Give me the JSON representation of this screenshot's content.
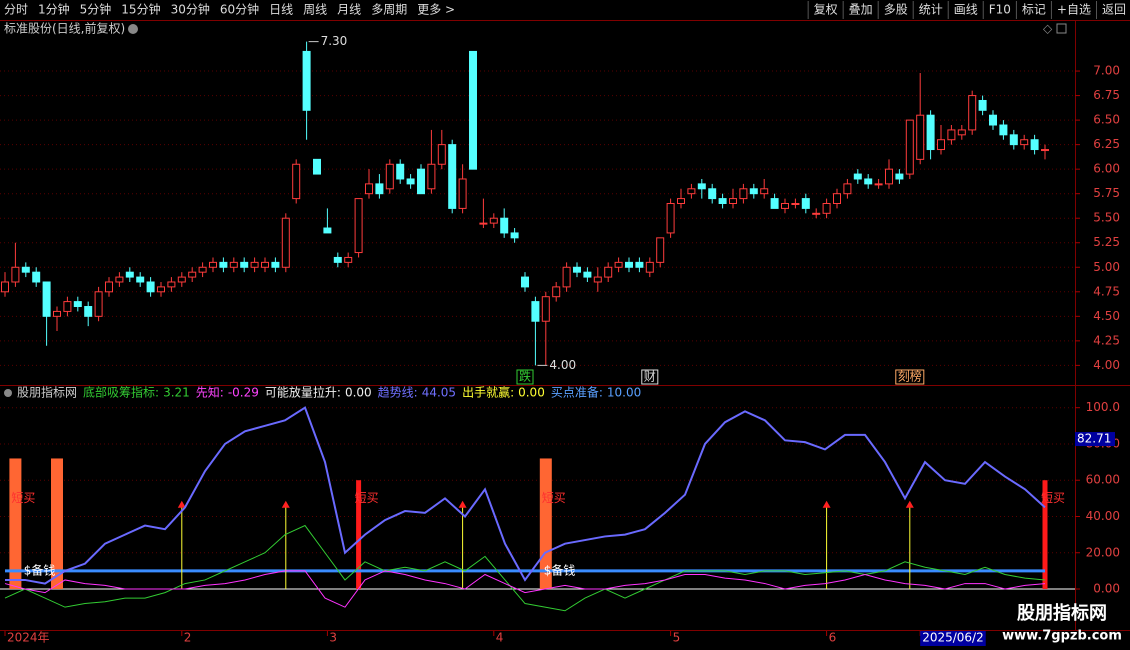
{
  "toolbar": {
    "left": [
      "分时",
      "1分钟",
      "5分钟",
      "15分钟",
      "30分钟",
      "60分钟",
      "日线",
      "周线",
      "月线",
      "多周期",
      "更多 >"
    ],
    "right": [
      "复权",
      "叠加",
      "多股",
      "统计",
      "画线",
      "F10",
      "标记",
      "+自选",
      "返回"
    ]
  },
  "chart_data": [
    {
      "type": "candlestick",
      "title": "标准股份(日线,前复权)",
      "candles": [
        [
          4.75,
          4.95,
          4.7,
          4.85
        ],
        [
          4.85,
          5.25,
          4.8,
          5.0
        ],
        [
          5.0,
          5.05,
          4.9,
          4.95
        ],
        [
          4.95,
          5.0,
          4.8,
          4.85
        ],
        [
          4.85,
          4.85,
          4.2,
          4.5
        ],
        [
          4.5,
          4.6,
          4.35,
          4.55
        ],
        [
          4.55,
          4.7,
          4.5,
          4.65
        ],
        [
          4.65,
          4.7,
          4.55,
          4.6
        ],
        [
          4.6,
          4.65,
          4.4,
          4.5
        ],
        [
          4.5,
          4.8,
          4.45,
          4.75
        ],
        [
          4.75,
          4.9,
          4.7,
          4.85
        ],
        [
          4.85,
          4.95,
          4.8,
          4.9
        ],
        [
          4.95,
          5.0,
          4.85,
          4.9
        ],
        [
          4.9,
          4.95,
          4.8,
          4.85
        ],
        [
          4.85,
          4.9,
          4.7,
          4.75
        ],
        [
          4.75,
          4.85,
          4.7,
          4.8
        ],
        [
          4.8,
          4.9,
          4.75,
          4.85
        ],
        [
          4.85,
          4.95,
          4.8,
          4.9
        ],
        [
          4.9,
          5.0,
          4.85,
          4.95
        ],
        [
          4.95,
          5.05,
          4.9,
          5.0
        ],
        [
          5.0,
          5.1,
          4.95,
          5.05
        ],
        [
          5.05,
          5.1,
          4.95,
          5.0
        ],
        [
          5.0,
          5.1,
          4.95,
          5.05
        ],
        [
          5.05,
          5.1,
          4.95,
          5.0
        ],
        [
          5.0,
          5.1,
          4.95,
          5.05
        ],
        [
          5.0,
          5.1,
          4.95,
          5.05
        ],
        [
          5.05,
          5.1,
          4.95,
          5.0
        ],
        [
          5.0,
          5.55,
          4.95,
          5.5
        ],
        [
          5.7,
          6.1,
          5.65,
          6.05
        ],
        [
          7.2,
          7.3,
          6.3,
          6.6
        ],
        [
          6.1,
          6.1,
          5.95,
          5.95
        ],
        [
          5.4,
          5.6,
          5.35,
          5.35
        ],
        [
          5.1,
          5.15,
          5.0,
          5.05
        ],
        [
          5.05,
          5.15,
          5.0,
          5.1
        ],
        [
          5.15,
          5.7,
          5.1,
          5.7
        ],
        [
          5.75,
          6.0,
          5.7,
          5.85
        ],
        [
          5.85,
          5.95,
          5.7,
          5.75
        ],
        [
          5.8,
          6.1,
          5.75,
          6.05
        ],
        [
          6.05,
          6.1,
          5.85,
          5.9
        ],
        [
          5.9,
          5.95,
          5.8,
          5.85
        ],
        [
          6.0,
          6.05,
          5.75,
          5.75
        ],
        [
          5.8,
          6.4,
          5.75,
          6.05
        ],
        [
          6.05,
          6.4,
          6.0,
          6.25
        ],
        [
          6.25,
          6.3,
          5.55,
          5.6
        ],
        [
          5.6,
          6.05,
          5.55,
          5.9
        ],
        [
          7.2,
          7.2,
          6.0,
          6.0
        ],
        [
          5.45,
          5.7,
          5.4,
          5.45
        ],
        [
          5.45,
          5.55,
          5.4,
          5.5
        ],
        [
          5.5,
          5.6,
          5.3,
          5.35
        ],
        [
          5.35,
          5.4,
          5.25,
          5.3
        ],
        [
          4.9,
          4.95,
          4.75,
          4.8
        ],
        [
          4.65,
          4.7,
          4.0,
          4.45
        ],
        [
          4.45,
          4.75,
          4.0,
          4.7
        ],
        [
          4.7,
          4.85,
          4.65,
          4.8
        ],
        [
          4.8,
          5.05,
          4.75,
          5.0
        ],
        [
          5.0,
          5.05,
          4.9,
          4.95
        ],
        [
          4.95,
          5.0,
          4.85,
          4.9
        ],
        [
          4.85,
          5.0,
          4.75,
          4.9
        ],
        [
          4.9,
          5.05,
          4.85,
          5.0
        ],
        [
          5.0,
          5.1,
          4.95,
          5.05
        ],
        [
          5.05,
          5.1,
          4.95,
          5.0
        ],
        [
          5.05,
          5.1,
          4.95,
          5.0
        ],
        [
          4.95,
          5.1,
          4.9,
          5.05
        ],
        [
          5.05,
          5.3,
          5.0,
          5.3
        ],
        [
          5.35,
          5.7,
          5.3,
          5.65
        ],
        [
          5.65,
          5.8,
          5.6,
          5.7
        ],
        [
          5.75,
          5.85,
          5.7,
          5.8
        ],
        [
          5.85,
          5.9,
          5.7,
          5.8
        ],
        [
          5.8,
          5.85,
          5.65,
          5.7
        ],
        [
          5.7,
          5.75,
          5.6,
          5.65
        ],
        [
          5.65,
          5.8,
          5.6,
          5.7
        ],
        [
          5.7,
          5.85,
          5.65,
          5.8
        ],
        [
          5.8,
          5.85,
          5.7,
          5.75
        ],
        [
          5.75,
          5.9,
          5.7,
          5.8
        ],
        [
          5.7,
          5.75,
          5.6,
          5.6
        ],
        [
          5.6,
          5.7,
          5.55,
          5.65
        ],
        [
          5.65,
          5.7,
          5.6,
          5.65
        ],
        [
          5.7,
          5.75,
          5.55,
          5.6
        ],
        [
          5.55,
          5.6,
          5.5,
          5.55
        ],
        [
          5.55,
          5.7,
          5.5,
          5.65
        ],
        [
          5.65,
          5.8,
          5.6,
          5.75
        ],
        [
          5.75,
          5.9,
          5.7,
          5.85
        ],
        [
          5.95,
          6.0,
          5.85,
          5.9
        ],
        [
          5.9,
          5.95,
          5.8,
          5.85
        ],
        [
          5.85,
          5.9,
          5.8,
          5.85
        ],
        [
          5.85,
          6.1,
          5.8,
          6.0
        ],
        [
          5.95,
          6.0,
          5.85,
          5.9
        ],
        [
          5.95,
          6.5,
          5.9,
          6.5
        ],
        [
          6.1,
          6.98,
          6.05,
          6.55
        ],
        [
          6.55,
          6.6,
          6.1,
          6.2
        ],
        [
          6.2,
          6.45,
          6.15,
          6.3
        ],
        [
          6.3,
          6.45,
          6.25,
          6.4
        ],
        [
          6.35,
          6.45,
          6.3,
          6.4
        ],
        [
          6.4,
          6.8,
          6.35,
          6.75
        ],
        [
          6.7,
          6.75,
          6.55,
          6.6
        ],
        [
          6.55,
          6.6,
          6.4,
          6.45
        ],
        [
          6.45,
          6.5,
          6.3,
          6.35
        ],
        [
          6.35,
          6.4,
          6.2,
          6.25
        ],
        [
          6.25,
          6.35,
          6.2,
          6.3
        ],
        [
          6.3,
          6.35,
          6.15,
          6.2
        ],
        [
          6.2,
          6.25,
          6.1,
          6.2
        ]
      ],
      "up_color": "#ff3c3c",
      "down_color": "#54ffff",
      "ylim": [
        3.8,
        7.5
      ],
      "yticks": [
        {
          "value": 4,
          "label": "4.00"
        },
        4.25,
        {
          "value": 4.5,
          "label": "4.50"
        },
        4.75,
        {
          "value": 5,
          "label": "5.00"
        },
        5.25,
        {
          "value": 5.5,
          "label": "5.50"
        },
        5.75,
        {
          "value": 6,
          "label": "6.00"
        },
        6.25,
        {
          "value": 6.5,
          "label": "6.50"
        },
        6.75,
        {
          "value": 7,
          "label": "7.00"
        }
      ],
      "grid": true,
      "annotations": [
        {
          "label": "7.30",
          "value": 7.3,
          "at": 29
        },
        {
          "label": "4.00",
          "value": 4.0,
          "at": 51
        }
      ],
      "markers": [
        {
          "text": "跌",
          "at": 50,
          "color": "#33cc33"
        },
        {
          "text": "财",
          "at": 62,
          "color": "#dddddd"
        },
        {
          "text": "刻榜",
          "at": 87,
          "color": "#ffaa66"
        }
      ]
    },
    {
      "type": "indicator",
      "title": "股朋指标网",
      "readouts": [
        {
          "name": "底部吸筹指标:",
          "value": "3.21",
          "color": "#33cc33"
        },
        {
          "name": "先知:",
          "value": "-0.29",
          "color": "#ff44ff"
        },
        {
          "name": "可能放量拉升:",
          "value": "0.00",
          "color": "#eeeeee"
        },
        {
          "name": "趋势线:",
          "value": "44.05",
          "color": "#7070ff"
        },
        {
          "name": "出手就赢:",
          "value": "0.00",
          "color": "#ffff33"
        },
        {
          "name": "买点准备:",
          "value": "10.00",
          "color": "#5aa0ff"
        }
      ],
      "series": [
        {
          "color": "#6a6aff",
          "values": [
            5,
            5,
            3,
            10,
            14,
            25,
            30,
            35,
            33,
            45,
            65,
            80,
            87,
            90,
            93,
            100,
            70,
            20,
            30,
            38,
            43,
            42,
            50,
            40,
            55,
            25,
            5,
            20,
            25,
            27,
            29,
            30,
            33,
            42,
            52,
            80,
            92,
            98,
            93,
            82,
            81,
            77,
            85,
            85,
            70,
            50,
            70,
            60,
            58,
            70,
            62,
            55,
            45
          ]
        },
        {
          "color": "#33cc33",
          "values": [
            -5,
            0,
            -5,
            -10,
            -8,
            -7,
            -5,
            -5,
            -2,
            3,
            5,
            10,
            15,
            20,
            30,
            35,
            20,
            5,
            15,
            10,
            12,
            10,
            15,
            10,
            18,
            5,
            -8,
            -10,
            -12,
            -5,
            0,
            -5,
            0,
            5,
            10,
            10,
            10,
            8,
            10,
            10,
            8,
            9,
            10,
            8,
            10,
            15,
            12,
            10,
            8,
            12,
            8,
            6,
            5
          ]
        },
        {
          "color": "#ff33ff",
          "values": [
            3,
            0,
            -2,
            5,
            3,
            2,
            0,
            0,
            0,
            0,
            2,
            3,
            5,
            8,
            10,
            10,
            -5,
            -10,
            5,
            10,
            8,
            5,
            3,
            0,
            8,
            3,
            -2,
            0,
            2,
            0,
            0,
            2,
            3,
            5,
            8,
            8,
            6,
            5,
            3,
            0,
            2,
            3,
            5,
            8,
            5,
            3,
            2,
            0,
            3,
            3,
            0,
            2,
            3
          ]
        }
      ],
      "buy_level": 10,
      "buy_color": "#3a8cff",
      "ylim": [
        -21.5,
        107
      ],
      "yticks": [
        {
          "value": 0,
          "label": "0.00"
        },
        {
          "value": 20,
          "label": "20.00"
        },
        {
          "value": 40,
          "label": "40.00"
        },
        {
          "value": 60,
          "label": "60.00"
        },
        {
          "value": 80,
          "label": "80.00"
        },
        {
          "value": 100,
          "label": "100.0"
        }
      ],
      "cursor_value": 82.71,
      "spikes": [
        {
          "color": "#ff6633",
          "at": [
            1,
            5,
            52
          ],
          "values": [
            72,
            72,
            72
          ]
        },
        {
          "color": "#ff1a1a",
          "at": [
            34,
            100
          ],
          "values": [
            60,
            60
          ]
        }
      ],
      "signals": {
        "color": "#ffff33",
        "at": [
          17,
          27,
          44,
          79,
          87
        ],
        "values": [
          47,
          47,
          47,
          47,
          47
        ]
      },
      "short_buy": {
        "text": "短买",
        "at": [
          1,
          34,
          52,
          100
        ]
      },
      "prepare": {
        "text": "$备钱",
        "at": [
          2,
          52
        ]
      }
    }
  ],
  "x_axis": {
    "labels": [
      "2024年",
      "2",
      "3",
      "4",
      "5",
      "6",
      "2025/06/2"
    ],
    "at": [
      0,
      17,
      31,
      47,
      64,
      79,
      88
    ]
  },
  "watermark": {
    "name": "股朋指标网",
    "url": "www.7gpzb.com"
  }
}
